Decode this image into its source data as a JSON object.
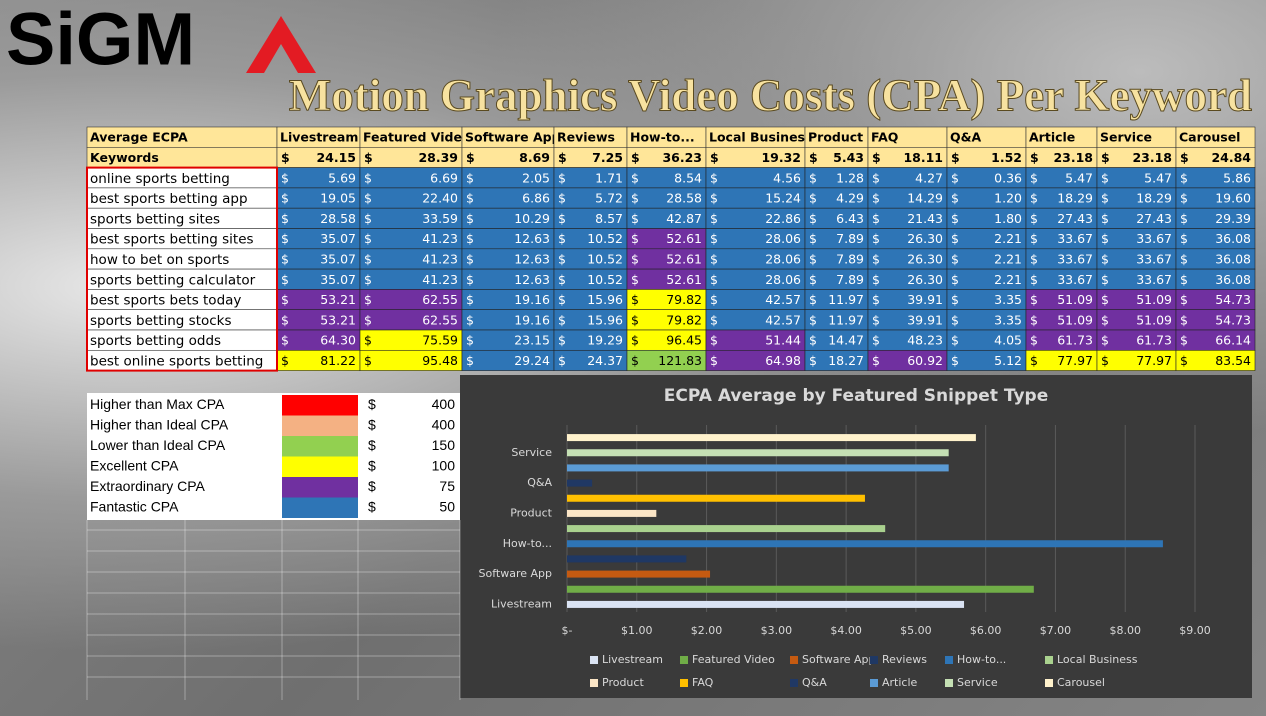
{
  "logo": "SiGM",
  "title": "Motion Graphics Video Costs (CPA) Per Keyword",
  "currency": "$",
  "table": {
    "header": [
      "Average ECPA",
      "Livestream",
      "Featured Video",
      "Software App",
      "Reviews",
      "How-to...",
      "Local Business",
      "Product",
      "FAQ",
      "Q&A",
      "Article",
      "Service",
      "Carousel"
    ],
    "average_row": {
      "label": "Keywords",
      "values": [
        "24.15",
        "28.39",
        "8.69",
        "7.25",
        "36.23",
        "19.32",
        "5.43",
        "18.11",
        "1.52",
        "23.18",
        "23.18",
        "24.84"
      ]
    },
    "rows": [
      {
        "keyword": "online sports betting",
        "values": [
          "5.69",
          "6.69",
          "2.05",
          "1.71",
          "8.54",
          "4.56",
          "1.28",
          "4.27",
          "0.36",
          "5.47",
          "5.47",
          "5.86"
        ]
      },
      {
        "keyword": "best sports betting app",
        "values": [
          "19.05",
          "22.40",
          "6.86",
          "5.72",
          "28.58",
          "15.24",
          "4.29",
          "14.29",
          "1.20",
          "18.29",
          "18.29",
          "19.60"
        ]
      },
      {
        "keyword": "sports betting sites",
        "values": [
          "28.58",
          "33.59",
          "10.29",
          "8.57",
          "42.87",
          "22.86",
          "6.43",
          "21.43",
          "1.80",
          "27.43",
          "27.43",
          "29.39"
        ]
      },
      {
        "keyword": "best sports betting sites",
        "values": [
          "35.07",
          "41.23",
          "12.63",
          "10.52",
          "52.61",
          "28.06",
          "7.89",
          "26.30",
          "2.21",
          "33.67",
          "33.67",
          "36.08"
        ]
      },
      {
        "keyword": "how to bet on sports",
        "values": [
          "35.07",
          "41.23",
          "12.63",
          "10.52",
          "52.61",
          "28.06",
          "7.89",
          "26.30",
          "2.21",
          "33.67",
          "33.67",
          "36.08"
        ]
      },
      {
        "keyword": "sports betting calculator",
        "values": [
          "35.07",
          "41.23",
          "12.63",
          "10.52",
          "52.61",
          "28.06",
          "7.89",
          "26.30",
          "2.21",
          "33.67",
          "33.67",
          "36.08"
        ]
      },
      {
        "keyword": "best sports bets today",
        "values": [
          "53.21",
          "62.55",
          "19.16",
          "15.96",
          "79.82",
          "42.57",
          "11.97",
          "39.91",
          "3.35",
          "51.09",
          "51.09",
          "54.73"
        ]
      },
      {
        "keyword": "sports betting stocks",
        "values": [
          "53.21",
          "62.55",
          "19.16",
          "15.96",
          "79.82",
          "42.57",
          "11.97",
          "39.91",
          "3.35",
          "51.09",
          "51.09",
          "54.73"
        ]
      },
      {
        "keyword": "sports betting odds",
        "values": [
          "64.30",
          "75.59",
          "23.15",
          "19.29",
          "96.45",
          "51.44",
          "14.47",
          "48.23",
          "4.05",
          "61.73",
          "61.73",
          "66.14"
        ]
      },
      {
        "keyword": "best online sports betting",
        "values": [
          "81.22",
          "95.48",
          "29.24",
          "24.37",
          "121.83",
          "64.98",
          "18.27",
          "60.92",
          "5.12",
          "77.97",
          "77.97",
          "83.54"
        ]
      }
    ]
  },
  "legend": [
    {
      "label": "Higher than Max CPA",
      "color": "#ff0000",
      "value": "400"
    },
    {
      "label": "Higher than Ideal CPA",
      "color": "#f4b183",
      "value": "400"
    },
    {
      "label": "Lower than Ideal CPA",
      "color": "#92d050",
      "value": "150"
    },
    {
      "label": "Excellent CPA",
      "color": "#ffff00",
      "value": "100"
    },
    {
      "label": "Extraordinary CPA",
      "color": "#7030a0",
      "value": "75"
    },
    {
      "label": "Fantastic CPA",
      "color": "#2e75b6",
      "value": "50"
    }
  ],
  "chart_data": {
    "type": "barh",
    "title": "ECPA Average by Featured Snippet Type",
    "categories": [
      "Livestream",
      null,
      "Software App",
      null,
      "How-to...",
      null,
      "Product",
      null,
      "Q&A",
      null,
      "Service",
      null
    ],
    "values": [
      5.69,
      6.69,
      2.05,
      1.71,
      8.54,
      4.56,
      1.28,
      4.27,
      0.36,
      5.47,
      5.47,
      5.86
    ],
    "colors": [
      "#dae3f3",
      "#70ad47",
      "#c55a11",
      "#1f3864",
      "#2e75b6",
      "#a9d18e",
      "#fbe5c6",
      "#ffc000",
      "#203864",
      "#5b9bd5",
      "#c5e0b4",
      "#fff2cc"
    ],
    "legend": [
      "Livestream",
      "Featured Video",
      "Software App",
      "Reviews",
      "How-to...",
      "Local Business",
      "Product",
      "FAQ",
      "Q&A",
      "Article",
      "Service",
      "Carousel"
    ],
    "xlim": [
      0,
      9
    ],
    "xticks": [
      {
        "value": 0,
        "label": "$-"
      },
      {
        "value": 1,
        "label": "$1.00"
      },
      {
        "value": 2,
        "label": "$2.00"
      },
      {
        "value": 3,
        "label": "$3.00"
      },
      {
        "value": 4,
        "label": "$4.00"
      },
      {
        "value": 5,
        "label": "$5.00"
      },
      {
        "value": 6,
        "label": "$6.00"
      },
      {
        "value": 7,
        "label": "$7.00"
      },
      {
        "value": 8,
        "label": "$8.00"
      },
      {
        "value": 9,
        "label": "$9.00"
      }
    ],
    "grid": true
  }
}
